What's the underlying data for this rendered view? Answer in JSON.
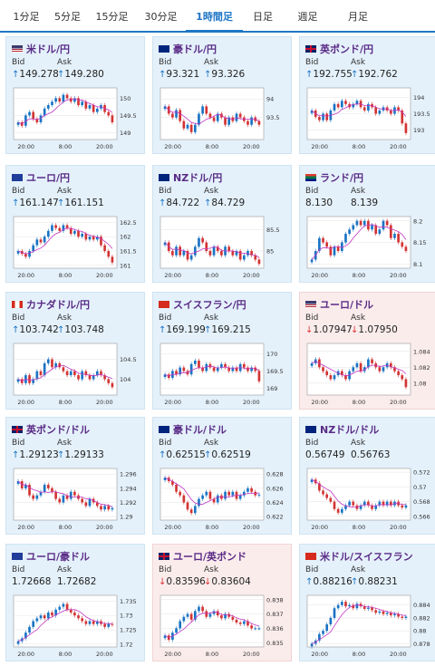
{
  "tabs": [
    {
      "label": "1分足",
      "active": false
    },
    {
      "label": "5分足",
      "active": false
    },
    {
      "label": "15分足",
      "active": false
    },
    {
      "label": "30分足",
      "active": false
    },
    {
      "label": "1時間足",
      "active": true
    },
    {
      "label": "日足",
      "active": false
    },
    {
      "label": "週足",
      "active": false
    },
    {
      "label": "月足",
      "active": false
    }
  ],
  "labels": {
    "bid": "Bid",
    "ask": "Ask"
  },
  "colors": {
    "up": "#1a73c4",
    "down": "#d33333",
    "ma": "#c236c2",
    "ma2": "#3aa0d8",
    "card_up": "#e4f1fb",
    "card_down": "#fbecec"
  },
  "pairs": [
    {
      "name": "米ドル/円",
      "flag": "us-flag",
      "trend": "up",
      "bid": "149.278",
      "ask": "149.280",
      "chart_data": {
        "type": "candlestick",
        "x_ticks": [
          "20:00",
          "8:00",
          "20:00"
        ],
        "y_ticks": [
          "150",
          "149.5",
          "149"
        ],
        "ylim": [
          148.8,
          150.3
        ],
        "close": [
          149.3,
          149.2,
          149.5,
          149.6,
          149.4,
          149.3,
          149.5,
          149.7,
          149.8,
          149.9,
          150.0,
          149.9,
          150.1,
          150.0,
          149.9,
          150.0,
          149.8,
          149.9,
          149.7,
          149.8,
          149.6,
          149.7,
          149.8,
          149.6,
          149.5,
          149.3
        ]
      }
    },
    {
      "name": "豪ドル/円",
      "flag": "au-flag",
      "trend": "up",
      "bid": "93.321",
      "ask": "93.326",
      "chart_data": {
        "type": "candlestick",
        "x_ticks": [
          "20:00",
          "8:00",
          "20:00"
        ],
        "y_ticks": [
          "94",
          "93.5"
        ],
        "ylim": [
          92.9,
          94.3
        ],
        "close": [
          93.8,
          93.6,
          93.5,
          93.7,
          93.4,
          93.2,
          93.3,
          93.1,
          93.3,
          93.6,
          93.8,
          93.6,
          93.5,
          93.4,
          93.6,
          93.5,
          93.3,
          93.5,
          93.4,
          93.6,
          93.5,
          93.4,
          93.3,
          93.5,
          93.4,
          93.3
        ]
      }
    },
    {
      "name": "英ポンド/円",
      "flag": "uk-flag",
      "trend": "up",
      "bid": "192.755",
      "ask": "192.762",
      "chart_data": {
        "type": "candlestick",
        "x_ticks": [
          "20:00",
          "8:00",
          "20:00"
        ],
        "y_ticks": [
          "194",
          "193.5",
          "193"
        ],
        "ylim": [
          192.7,
          194.3
        ],
        "close": [
          193.6,
          193.4,
          193.3,
          193.5,
          193.3,
          193.6,
          193.8,
          193.7,
          193.9,
          193.8,
          193.7,
          193.8,
          193.9,
          193.7,
          193.6,
          193.8,
          193.7,
          193.5,
          193.6,
          193.7,
          193.6,
          193.5,
          193.7,
          193.6,
          193.2,
          192.9
        ]
      }
    },
    {
      "name": "ユーロ/円",
      "flag": "eu-flag",
      "trend": "up",
      "bid": "161.147",
      "ask": "161.151",
      "chart_data": {
        "type": "candlestick",
        "x_ticks": [
          "20:00",
          "8:00",
          "20:00"
        ],
        "y_ticks": [
          "162.5",
          "162",
          "161.5",
          "161"
        ],
        "ylim": [
          160.9,
          162.7
        ],
        "close": [
          161.5,
          161.4,
          161.3,
          161.5,
          161.7,
          161.9,
          161.8,
          162.0,
          162.2,
          162.4,
          162.3,
          162.2,
          162.4,
          162.3,
          162.1,
          162.2,
          162.0,
          162.1,
          161.9,
          162.0,
          161.9,
          162.0,
          161.7,
          161.5,
          161.3,
          161.1
        ]
      }
    },
    {
      "name": "NZドル/円",
      "flag": "nz-flag",
      "trend": "up",
      "bid": "84.722",
      "ask": "84.729",
      "chart_data": {
        "type": "candlestick",
        "x_ticks": [
          "20:00",
          "8:00",
          "20:00"
        ],
        "y_ticks": [
          "85.5",
          "85"
        ],
        "ylim": [
          84.6,
          85.8
        ],
        "close": [
          85.2,
          85.0,
          84.9,
          85.1,
          84.9,
          85.0,
          84.8,
          84.9,
          85.1,
          85.3,
          85.2,
          85.0,
          84.9,
          85.1,
          85.0,
          84.9,
          85.1,
          85.0,
          84.9,
          85.0,
          84.8,
          84.9,
          85.0,
          84.9,
          84.8,
          84.7
        ]
      }
    },
    {
      "name": "ランド/円",
      "flag": "za-flag",
      "trend": "flat",
      "bid": "8.130",
      "ask": "8.139",
      "chart_data": {
        "type": "candlestick",
        "x_ticks": [
          "20:00",
          "8:00",
          "20:00"
        ],
        "y_ticks": [
          "8.2",
          "8.15",
          "8.1"
        ],
        "ylim": [
          8.09,
          8.21
        ],
        "close": [
          8.11,
          8.13,
          8.16,
          8.15,
          8.14,
          8.12,
          8.14,
          8.13,
          8.15,
          8.17,
          8.18,
          8.19,
          8.2,
          8.19,
          8.2,
          8.18,
          8.19,
          8.17,
          8.18,
          8.2,
          8.19,
          8.16,
          8.17,
          8.15,
          8.14,
          8.13
        ]
      }
    },
    {
      "name": "カナダドル/円",
      "flag": "ca-flag",
      "trend": "up",
      "bid": "103.742",
      "ask": "103.748",
      "chart_data": {
        "type": "candlestick",
        "x_ticks": [
          "20:00",
          "8:00",
          "20:00"
        ],
        "y_ticks": [
          "104.5",
          "104"
        ],
        "ylim": [
          103.6,
          104.9
        ],
        "close": [
          104.0,
          103.9,
          104.1,
          103.9,
          104.0,
          104.2,
          104.1,
          104.4,
          104.5,
          104.3,
          104.4,
          104.3,
          104.2,
          104.1,
          104.2,
          104.1,
          104.0,
          104.2,
          104.1,
          104.0,
          104.1,
          104.2,
          104.1,
          104.0,
          103.9,
          103.8
        ]
      }
    },
    {
      "name": "スイスフラン/円",
      "flag": "ch-flag",
      "trend": "up",
      "bid": "169.199",
      "ask": "169.215",
      "chart_data": {
        "type": "candlestick",
        "x_ticks": [
          "20:00",
          "8:00",
          "20:00"
        ],
        "y_ticks": [
          "170",
          "169.5",
          "169"
        ],
        "ylim": [
          168.8,
          170.3
        ],
        "close": [
          169.4,
          169.3,
          169.5,
          169.4,
          169.6,
          169.5,
          169.4,
          169.7,
          169.8,
          169.6,
          169.5,
          169.7,
          169.6,
          169.5,
          169.6,
          169.7,
          169.6,
          169.5,
          169.6,
          169.5,
          169.7,
          169.6,
          169.5,
          169.6,
          169.5,
          169.2
        ]
      }
    },
    {
      "name": "ユーロ/ドル",
      "flag": "eu-us-flag",
      "trend": "down",
      "bid": "1.07947",
      "ask": "1.07950",
      "chart_data": {
        "type": "candlestick",
        "x_ticks": [
          "20:00",
          "8:00",
          "20:00"
        ],
        "y_ticks": [
          "1.084",
          "1.082",
          "1.08"
        ],
        "ylim": [
          1.0785,
          1.085
        ],
        "close": [
          1.0825,
          1.083,
          1.082,
          1.0815,
          1.081,
          1.0805,
          1.081,
          1.0815,
          1.081,
          1.0805,
          1.0815,
          1.082,
          1.0825,
          1.0815,
          1.082,
          1.083,
          1.0825,
          1.082,
          1.0815,
          1.082,
          1.0825,
          1.082,
          1.0815,
          1.081,
          1.0805,
          1.0795
        ]
      }
    },
    {
      "name": "英ポンド/ドル",
      "flag": "uk-flag",
      "trend": "up",
      "bid": "1.29123",
      "ask": "1.29133",
      "chart_data": {
        "type": "candlestick",
        "x_ticks": [
          "20:00",
          "8:00",
          "20:00"
        ],
        "y_ticks": [
          "1.296",
          "1.294",
          "1.292",
          "1.29"
        ],
        "ylim": [
          1.2895,
          1.2968
        ],
        "close": [
          1.295,
          1.294,
          1.2945,
          1.293,
          1.2925,
          1.293,
          1.2935,
          1.2945,
          1.294,
          1.2935,
          1.2925,
          1.292,
          1.293,
          1.2925,
          1.2935,
          1.293,
          1.2925,
          1.292,
          1.2915,
          1.2925,
          1.292,
          1.2915,
          1.291,
          1.2915,
          1.291,
          1.2912
        ]
      }
    },
    {
      "name": "豪ドル/ドル",
      "flag": "au-flag",
      "trend": "up",
      "bid": "0.62515",
      "ask": "0.62519",
      "chart_data": {
        "type": "candlestick",
        "x_ticks": [
          "20:00",
          "8:00",
          "20:00"
        ],
        "y_ticks": [
          "0.628",
          "0.626",
          "0.624",
          "0.622"
        ],
        "ylim": [
          0.6215,
          0.6288
        ],
        "close": [
          0.6275,
          0.627,
          0.6265,
          0.6255,
          0.625,
          0.624,
          0.623,
          0.6225,
          0.6235,
          0.6245,
          0.625,
          0.6255,
          0.6245,
          0.624,
          0.625,
          0.6245,
          0.6255,
          0.625,
          0.6255,
          0.6245,
          0.625,
          0.6255,
          0.626,
          0.6255,
          0.625,
          0.6251
        ]
      }
    },
    {
      "name": "NZドル/ドル",
      "flag": "nz-flag",
      "trend": "flat",
      "bid": "0.56749",
      "ask": "0.56763",
      "chart_data": {
        "type": "candlestick",
        "x_ticks": [
          "20:00",
          "8:00",
          "20:00"
        ],
        "y_ticks": [
          "0.572",
          "0.57",
          "0.568",
          "0.566"
        ],
        "ylim": [
          0.5655,
          0.5725
        ],
        "close": [
          0.571,
          0.5705,
          0.5695,
          0.569,
          0.5685,
          0.568,
          0.567,
          0.5665,
          0.567,
          0.5675,
          0.568,
          0.5675,
          0.567,
          0.5675,
          0.568,
          0.5675,
          0.567,
          0.5675,
          0.568,
          0.5675,
          0.568,
          0.5675,
          0.568,
          0.5675,
          0.5672,
          0.5675
        ]
      }
    },
    {
      "name": "ユーロ/豪ドル",
      "flag": "eu-flag",
      "trend": "flat",
      "bid": "1.72668",
      "ask": "1.72682",
      "chart_data": {
        "type": "candlestick",
        "x_ticks": [
          "20:00",
          "8:00",
          "20:00"
        ],
        "y_ticks": [
          "1.735",
          "1.73",
          "1.725",
          "1.72"
        ],
        "ylim": [
          1.719,
          1.737
        ],
        "close": [
          1.721,
          1.722,
          1.724,
          1.726,
          1.728,
          1.729,
          1.73,
          1.729,
          1.731,
          1.73,
          1.732,
          1.733,
          1.734,
          1.732,
          1.731,
          1.73,
          1.729,
          1.728,
          1.727,
          1.728,
          1.727,
          1.728,
          1.727,
          1.726,
          1.727,
          1.7267
        ]
      }
    },
    {
      "name": "ユーロ/英ポンド",
      "flag": "eu-uk-flag",
      "trend": "down",
      "bid": "0.83596",
      "ask": "0.83604",
      "chart_data": {
        "type": "candlestick",
        "x_ticks": [
          "20:00",
          "8:00",
          "20:00"
        ],
        "y_ticks": [
          "0.838",
          "0.837",
          "0.836",
          "0.835"
        ],
        "ylim": [
          0.8347,
          0.8383
        ],
        "close": [
          0.8355,
          0.8352,
          0.8357,
          0.836,
          0.8365,
          0.8368,
          0.837,
          0.8366,
          0.8372,
          0.8375,
          0.8372,
          0.8368,
          0.837,
          0.8372,
          0.8369,
          0.8367,
          0.837,
          0.8368,
          0.8366,
          0.8364,
          0.8363,
          0.8365,
          0.8362,
          0.836,
          0.836,
          0.836
        ]
      }
    },
    {
      "name": "米ドル/スイスフラン",
      "flag": "us-ch-flag",
      "trend": "up",
      "bid": "0.88216",
      "ask": "0.88231",
      "chart_data": {
        "type": "candlestick",
        "x_ticks": [
          "20:00",
          "8:00",
          "20:00"
        ],
        "y_ticks": [
          "0.884",
          "0.882",
          "0.88",
          "0.878"
        ],
        "ylim": [
          0.8775,
          0.8855
        ],
        "close": [
          0.878,
          0.8785,
          0.8795,
          0.88,
          0.881,
          0.882,
          0.8835,
          0.884,
          0.8845,
          0.8838,
          0.884,
          0.8835,
          0.8842,
          0.8838,
          0.8834,
          0.8836,
          0.8832,
          0.8828,
          0.883,
          0.8826,
          0.8828,
          0.8824,
          0.8826,
          0.8822,
          0.882,
          0.8822
        ]
      }
    }
  ]
}
